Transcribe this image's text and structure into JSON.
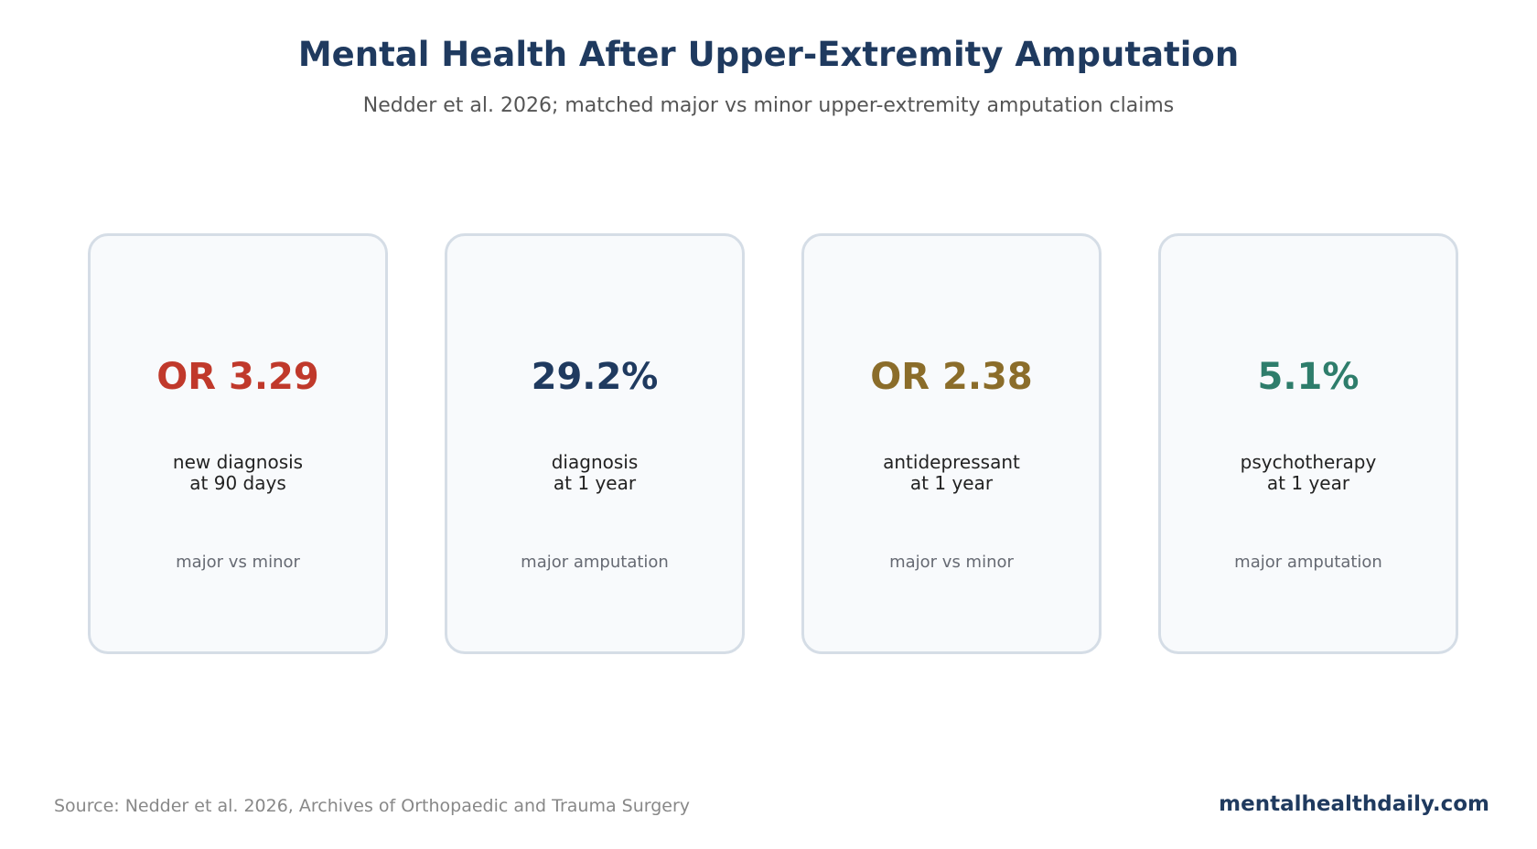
{
  "header": {
    "title": "Mental Health After Upper-Extremity Amputation",
    "subtitle": "Nedder et al. 2026; matched major vs minor upper-extremity amputation claims"
  },
  "cards": [
    {
      "value": "OR 3.29",
      "label_line1": "new diagnosis",
      "label_line2": "at 90 days",
      "note": "major vs minor",
      "color": "#c0392b"
    },
    {
      "value": "29.2%",
      "label_line1": "diagnosis",
      "label_line2": "at 1 year",
      "note": "major amputation",
      "color": "#1f3a5f"
    },
    {
      "value": "OR 2.38",
      "label_line1": "antidepressant",
      "label_line2": "at 1 year",
      "note": "major vs minor",
      "color": "#8b6d2a"
    },
    {
      "value": "5.1%",
      "label_line1": "psychotherapy",
      "label_line2": "at 1 year",
      "note": "major amputation",
      "color": "#2e7d6b"
    }
  ],
  "footer": {
    "source": "Source: Nedder et al. 2026, Archives of Orthopaedic and Trauma Surgery",
    "brand": "mentalhealthdaily.com"
  }
}
